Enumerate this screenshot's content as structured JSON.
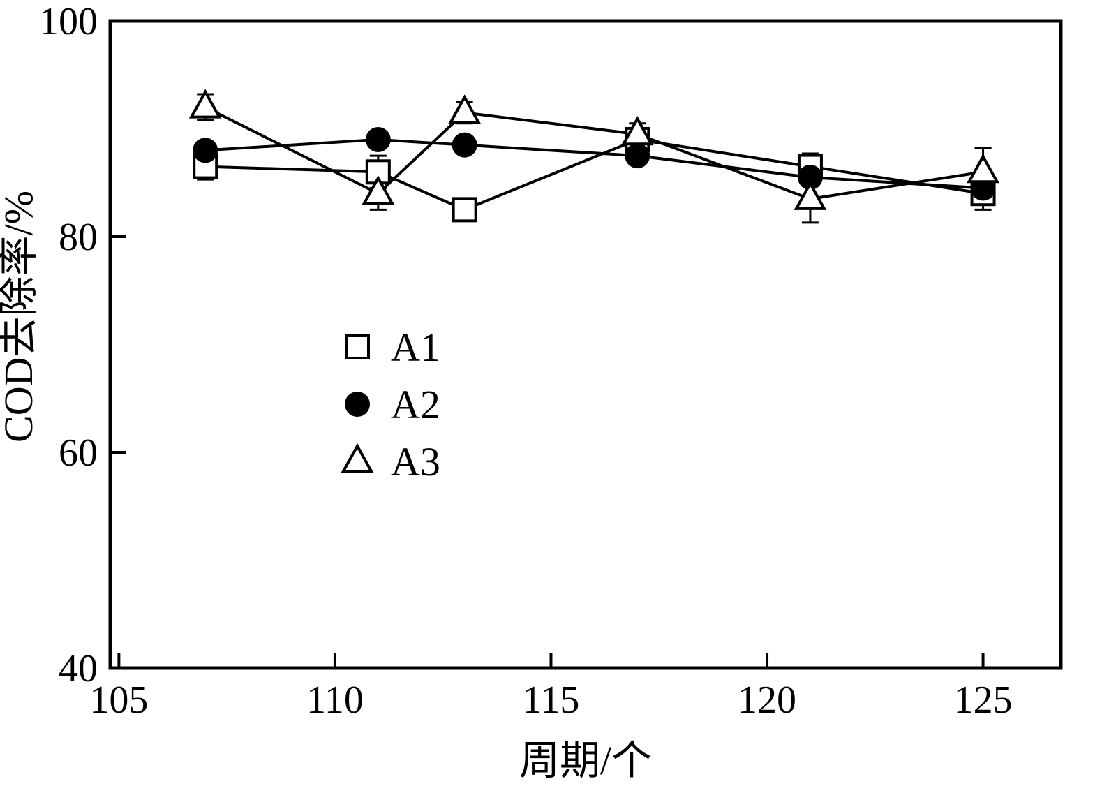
{
  "chart_data": {
    "type": "line",
    "title": "",
    "xlabel": "周期/个",
    "ylabel": "COD去除率/%",
    "xlim": [
      104.8,
      126.8
    ],
    "ylim": [
      40,
      100
    ],
    "xticks": [
      105,
      110,
      115,
      120,
      125
    ],
    "yticks": [
      40,
      60,
      80,
      100
    ],
    "grid": false,
    "legend_position": "inside-center-left",
    "x": [
      107,
      111,
      113,
      117,
      121,
      125
    ],
    "series": [
      {
        "name": "A1",
        "marker": "square-open",
        "values": [
          86.5,
          86,
          82.5,
          89,
          86.5,
          84
        ],
        "errors": [
          1.2,
          1.5,
          1,
          0.8,
          1.2,
          1.5
        ]
      },
      {
        "name": "A2",
        "marker": "circle-filled",
        "values": [
          88,
          89,
          88.5,
          87.5,
          85.5,
          84.5
        ],
        "errors": [
          0.8,
          0.6,
          0.6,
          0.8,
          0.8,
          1.2
        ]
      },
      {
        "name": "A3",
        "marker": "triangle-open",
        "values": [
          92,
          84,
          91.5,
          89.5,
          83.5,
          86
        ],
        "errors": [
          1.2,
          1.5,
          1,
          1,
          2.2,
          2.2
        ]
      }
    ]
  },
  "colors": {
    "ink": "#000000",
    "background": "#ffffff"
  }
}
